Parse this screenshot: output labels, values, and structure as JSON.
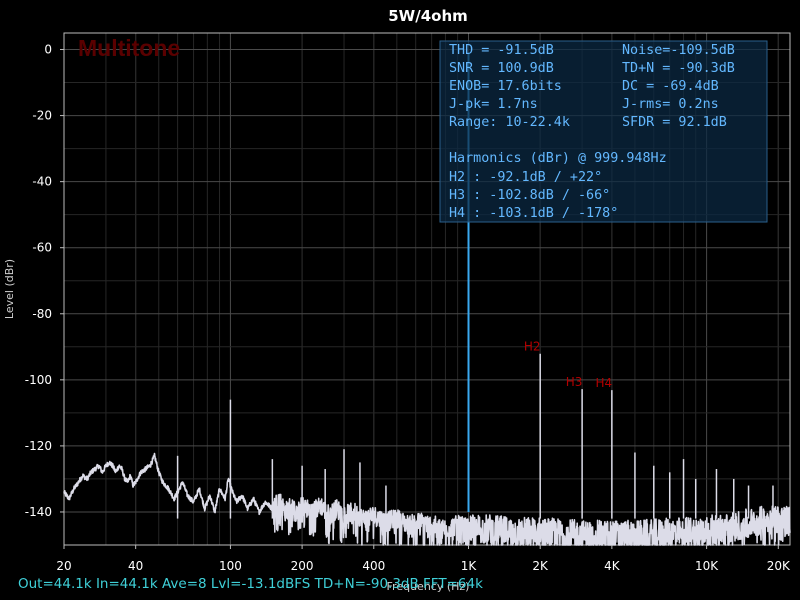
{
  "chart_data": {
    "type": "line",
    "title": "5W/4ohm",
    "watermark": "Multitone",
    "xlabel": "Frequency (Hz)",
    "ylabel": "Level (dBr)",
    "xscale": "log",
    "xlim": [
      20,
      22400
    ],
    "ylim": [
      -150,
      5
    ],
    "x_ticks": [
      {
        "value": 20,
        "label": "20"
      },
      {
        "value": 40,
        "label": "40"
      },
      {
        "value": 100,
        "label": "100"
      },
      {
        "value": 200,
        "label": "200"
      },
      {
        "value": 400,
        "label": "400"
      },
      {
        "value": 1000,
        "label": "1K"
      },
      {
        "value": 2000,
        "label": "2K"
      },
      {
        "value": 4000,
        "label": "4K"
      },
      {
        "value": 10000,
        "label": "10K"
      },
      {
        "value": 20000,
        "label": "20K"
      }
    ],
    "y_ticks": [
      {
        "value": 0,
        "label": "0"
      },
      {
        "value": -20,
        "label": "-20"
      },
      {
        "value": -40,
        "label": "-40"
      },
      {
        "value": -60,
        "label": "-60"
      },
      {
        "value": -80,
        "label": "-80"
      },
      {
        "value": -100,
        "label": "-100"
      },
      {
        "value": -120,
        "label": "-120"
      },
      {
        "value": -140,
        "label": "-140"
      }
    ],
    "grid": true,
    "series": [
      {
        "color": "#dcdce8",
        "noise_floor_points": [
          [
            20,
            -134
          ],
          [
            21,
            -136
          ],
          [
            22,
            -133
          ],
          [
            23,
            -131
          ],
          [
            24,
            -129
          ],
          [
            25,
            -130
          ],
          [
            26,
            -128
          ],
          [
            27,
            -127
          ],
          [
            28,
            -126
          ],
          [
            29,
            -128
          ],
          [
            30,
            -126
          ],
          [
            31,
            -125
          ],
          [
            32,
            -126
          ],
          [
            33,
            -128
          ],
          [
            34,
            -126
          ],
          [
            35,
            -127
          ],
          [
            36,
            -130
          ],
          [
            37,
            -131
          ],
          [
            38,
            -129
          ],
          [
            39,
            -132
          ],
          [
            40,
            -131
          ],
          [
            42,
            -128
          ],
          [
            44,
            -127
          ],
          [
            46,
            -126
          ],
          [
            48,
            -123
          ],
          [
            50,
            -128
          ],
          [
            52,
            -131
          ],
          [
            55,
            -133
          ],
          [
            58,
            -136
          ],
          [
            60,
            -134
          ],
          [
            63,
            -131
          ],
          [
            66,
            -135
          ],
          [
            70,
            -137
          ],
          [
            74,
            -133
          ],
          [
            78,
            -139
          ],
          [
            82,
            -135
          ],
          [
            86,
            -140
          ],
          [
            90,
            -133
          ],
          [
            95,
            -136
          ],
          [
            98,
            -130
          ],
          [
            102,
            -134
          ],
          [
            106,
            -137
          ],
          [
            112,
            -135
          ],
          [
            118,
            -139
          ],
          [
            125,
            -136
          ],
          [
            132,
            -140
          ],
          [
            140,
            -137
          ],
          [
            150,
            -139
          ],
          [
            160,
            -136
          ],
          [
            170,
            -140
          ],
          [
            180,
            -138
          ],
          [
            190,
            -141
          ],
          [
            200,
            -138
          ],
          [
            220,
            -140
          ],
          [
            240,
            -138
          ],
          [
            260,
            -141
          ],
          [
            280,
            -139
          ],
          [
            300,
            -141
          ],
          [
            330,
            -140
          ],
          [
            360,
            -142
          ],
          [
            400,
            -141
          ],
          [
            450,
            -143
          ],
          [
            500,
            -142
          ],
          [
            560,
            -144
          ],
          [
            630,
            -143
          ],
          [
            700,
            -144
          ],
          [
            800,
            -145
          ],
          [
            900,
            -144
          ],
          [
            1000,
            -145
          ],
          [
            1200,
            -145
          ],
          [
            1500,
            -146
          ],
          [
            2000,
            -146
          ],
          [
            3000,
            -147
          ],
          [
            5000,
            -147
          ],
          [
            8000,
            -146
          ],
          [
            12000,
            -145
          ],
          [
            16000,
            -143
          ],
          [
            20000,
            -142
          ],
          [
            22400,
            -143
          ]
        ],
        "spurs": [
          {
            "f": 60,
            "level": -123
          },
          {
            "f": 100,
            "level": -106
          },
          {
            "f": 150,
            "level": -124
          },
          {
            "f": 200,
            "level": -126
          },
          {
            "f": 250,
            "level": -127
          },
          {
            "f": 300,
            "level": -121
          },
          {
            "f": 350,
            "level": -125
          },
          {
            "f": 450,
            "level": -132
          },
          {
            "f": 1000,
            "level": -1
          },
          {
            "f": 2000,
            "level": -92.1
          },
          {
            "f": 3000,
            "level": -102.8
          },
          {
            "f": 4000,
            "level": -103.1
          },
          {
            "f": 5000,
            "level": -122
          },
          {
            "f": 6000,
            "level": -126
          },
          {
            "f": 7000,
            "level": -128
          },
          {
            "f": 8000,
            "level": -124
          },
          {
            "f": 9000,
            "level": -130
          },
          {
            "f": 11000,
            "level": -127
          },
          {
            "f": 13000,
            "level": -130
          },
          {
            "f": 15000,
            "level": -132
          },
          {
            "f": 19000,
            "level": -132
          }
        ]
      }
    ],
    "fundamental": {
      "f": 1000,
      "level": -1,
      "color": "#3aa9f0"
    },
    "harmonic_labels": [
      {
        "label": "H2",
        "f": 2000,
        "level": -92.1
      },
      {
        "label": "H3",
        "f": 3000,
        "level": -102.8
      },
      {
        "label": "H4",
        "f": 4000,
        "level": -103.1
      }
    ]
  },
  "measurements": {
    "rows": [
      [
        "THD = -91.5dB",
        "Noise=-109.5dB"
      ],
      [
        "SNR = 100.9dB",
        "TD+N = -90.3dB"
      ],
      [
        "ENOB=  17.6bits",
        "DC   = -69.4dB"
      ],
      [
        "J-pk=   1.7ns",
        "J-rms=   0.2ns"
      ],
      [
        "Range: 10-22.4k",
        "SFDR =  92.1dB"
      ]
    ],
    "harmonics_title": "Harmonics (dBr) @ 999.948Hz",
    "harmonics": [
      "H2 :   -92.1dB /  +22°",
      "H3 :  -102.8dB /  -66°",
      "H4 :  -103.1dB / -178°"
    ]
  },
  "footer": "Out=44.1k  In=44.1k  Ave=8  Lvl=-13.1dBFS  TD+N=-90.3dB  FFT=64k"
}
